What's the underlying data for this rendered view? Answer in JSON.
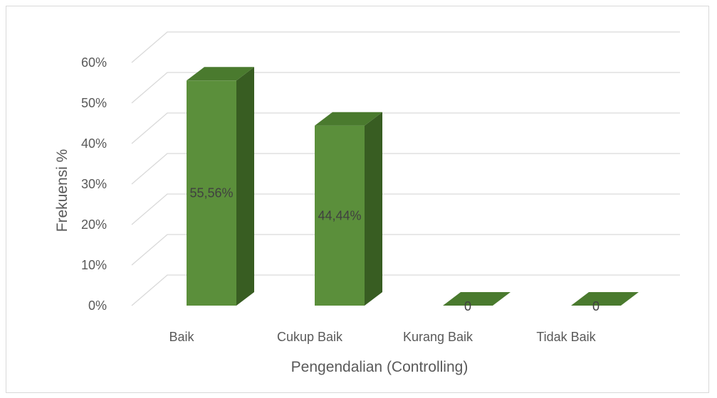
{
  "chart_data": {
    "type": "bar",
    "style": "3d-column",
    "title": "",
    "xlabel": "Pengendalian (Controlling)",
    "ylabel": "Frekuensi %",
    "categories": [
      "Baik",
      "Cukup Baik",
      "Kurang Baik",
      "Tidak Baik"
    ],
    "values": [
      55.56,
      44.44,
      0,
      0
    ],
    "data_labels": [
      "55,56%",
      "44,44%",
      "0",
      "0"
    ],
    "yticks": [
      "0%",
      "10%",
      "20%",
      "30%",
      "40%",
      "50%",
      "60%"
    ],
    "ylim": [
      0,
      60
    ],
    "grid": true,
    "legend": "none",
    "colors": {
      "front": "#5b8f3b",
      "side": "#385d22",
      "top": "#4a7a2e",
      "grid": "#d9d9d9",
      "text": "#595959"
    }
  }
}
